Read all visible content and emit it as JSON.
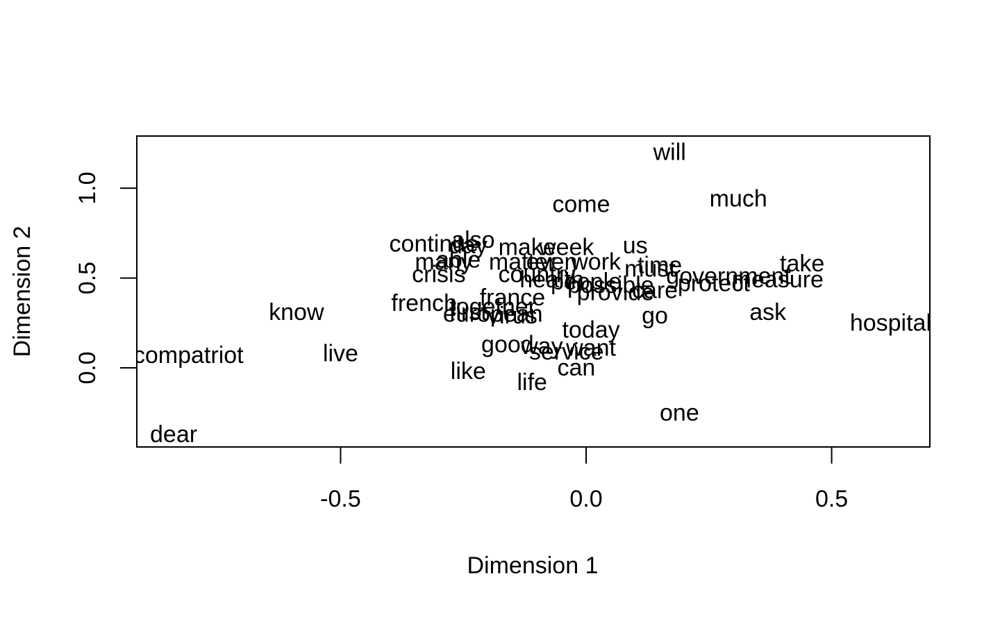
{
  "chart_data": {
    "type": "scatter",
    "title": "",
    "xlabel": "Dimension 1",
    "ylabel": "Dimension 2",
    "xlim": [
      -0.915,
      0.7
    ],
    "ylim": [
      -0.44,
      1.29
    ],
    "x_ticks": [
      -0.5,
      0.0,
      0.5
    ],
    "x_tick_labels": [
      "-0.5",
      "0.0",
      "0.5"
    ],
    "y_ticks": [
      0.0,
      0.5,
      1.0
    ],
    "y_tick_labels": [
      "0.0",
      "0.5",
      "1.0"
    ],
    "grid": false,
    "points": [
      {
        "label": "will",
        "x": 0.17,
        "y": 1.2
      },
      {
        "label": "come",
        "x": -0.01,
        "y": 0.91
      },
      {
        "label": "much",
        "x": 0.31,
        "y": 0.94
      },
      {
        "label": "continue",
        "x": -0.31,
        "y": 0.69
      },
      {
        "label": "also",
        "x": -0.23,
        "y": 0.71
      },
      {
        "label": "day",
        "x": -0.24,
        "y": 0.68
      },
      {
        "label": "make",
        "x": -0.12,
        "y": 0.67
      },
      {
        "label": "week",
        "x": -0.04,
        "y": 0.67
      },
      {
        "label": "us",
        "x": 0.1,
        "y": 0.68
      },
      {
        "label": "many",
        "x": -0.29,
        "y": 0.59
      },
      {
        "label": "able",
        "x": -0.26,
        "y": 0.6
      },
      {
        "label": "matter",
        "x": -0.13,
        "y": 0.59
      },
      {
        "label": "even",
        "x": -0.07,
        "y": 0.59
      },
      {
        "label": "work",
        "x": 0.02,
        "y": 0.59
      },
      {
        "label": "must",
        "x": 0.13,
        "y": 0.55
      },
      {
        "label": "time",
        "x": 0.15,
        "y": 0.57
      },
      {
        "label": "government",
        "x": 0.29,
        "y": 0.51
      },
      {
        "label": "take",
        "x": 0.44,
        "y": 0.58
      },
      {
        "label": "measure",
        "x": 0.39,
        "y": 0.49
      },
      {
        "label": "crisis",
        "x": -0.3,
        "y": 0.52
      },
      {
        "label": "country",
        "x": -0.1,
        "y": 0.52
      },
      {
        "label": "health",
        "x": -0.07,
        "y": 0.49
      },
      {
        "label": "people",
        "x": 0.0,
        "y": 0.48
      },
      {
        "label": "possible",
        "x": 0.05,
        "y": 0.46
      },
      {
        "label": "protect",
        "x": 0.26,
        "y": 0.47
      },
      {
        "label": "provide",
        "x": 0.06,
        "y": 0.42
      },
      {
        "label": "care",
        "x": 0.14,
        "y": 0.43
      },
      {
        "label": "french",
        "x": -0.33,
        "y": 0.36
      },
      {
        "label": "france",
        "x": -0.15,
        "y": 0.39
      },
      {
        "label": "together",
        "x": -0.19,
        "y": 0.34
      },
      {
        "label": "first",
        "x": -0.24,
        "y": 0.31
      },
      {
        "label": "european",
        "x": -0.19,
        "y": 0.3
      },
      {
        "label": "virus",
        "x": -0.15,
        "y": 0.29
      },
      {
        "label": "go",
        "x": 0.14,
        "y": 0.29
      },
      {
        "label": "ask",
        "x": 0.37,
        "y": 0.31
      },
      {
        "label": "hospital",
        "x": 0.62,
        "y": 0.25
      },
      {
        "label": "know",
        "x": -0.59,
        "y": 0.31
      },
      {
        "label": "today",
        "x": 0.01,
        "y": 0.21
      },
      {
        "label": "good",
        "x": -0.16,
        "y": 0.13
      },
      {
        "label": "way",
        "x": -0.09,
        "y": 0.12
      },
      {
        "label": "want",
        "x": 0.01,
        "y": 0.11
      },
      {
        "label": "service",
        "x": -0.04,
        "y": 0.09
      },
      {
        "label": "compatriot",
        "x": -0.81,
        "y": 0.07
      },
      {
        "label": "live",
        "x": -0.5,
        "y": 0.08
      },
      {
        "label": "like",
        "x": -0.24,
        "y": -0.02
      },
      {
        "label": "can",
        "x": -0.02,
        "y": 0.0
      },
      {
        "label": "life",
        "x": -0.11,
        "y": -0.08
      },
      {
        "label": "one",
        "x": 0.19,
        "y": -0.25
      },
      {
        "label": "dear",
        "x": -0.84,
        "y": -0.37
      }
    ]
  }
}
